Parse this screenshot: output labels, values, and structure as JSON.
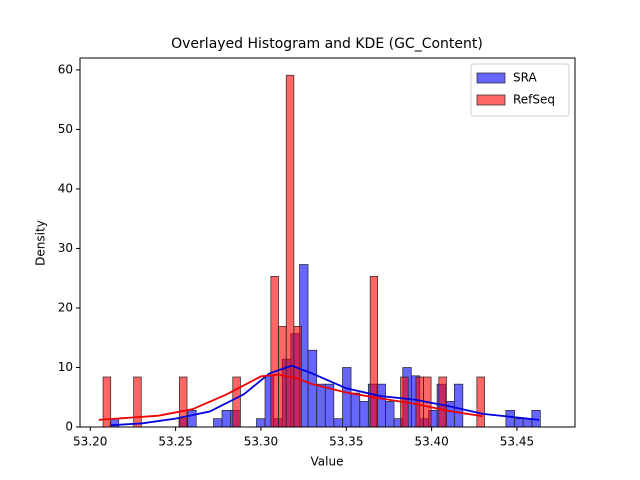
{
  "chart_data": {
    "type": "histogram",
    "title": "Overlayed Histogram and KDE (GC_Content)",
    "xlabel": "Value",
    "ylabel": "Density",
    "xlim": [
      53.194,
      53.484
    ],
    "ylim": [
      0,
      62
    ],
    "xticks": [
      {
        "value": 53.2,
        "label": "53.20"
      },
      53.25,
      {
        "value": 53.3,
        "label": "53.30"
      },
      53.35,
      {
        "value": 53.4,
        "label": "53.40"
      },
      53.45
    ],
    "yticks": [
      0,
      10,
      20,
      30,
      40,
      50,
      60
    ],
    "legend": "upper right",
    "series": [
      {
        "name": "SRA",
        "color": "#0000ff",
        "line_color": "#0000dd",
        "bins": [
          53.2117,
          53.2167,
          53.2218,
          53.2268,
          53.2319,
          53.2369,
          53.2419,
          53.247,
          53.252,
          53.2571,
          53.2621,
          53.2671,
          53.2722,
          53.2772,
          53.2823,
          53.2873,
          53.2923,
          53.2974,
          53.3024,
          53.3075,
          53.3125,
          53.3175,
          53.3226,
          53.3276,
          53.3327,
          53.3377,
          53.3427,
          53.3478,
          53.3528,
          53.3579,
          53.3629,
          53.3679,
          53.373,
          53.378,
          53.3831,
          53.3881,
          53.3931,
          53.3982,
          53.4032,
          53.4083,
          53.4133,
          53.4183,
          53.4234,
          53.4284,
          53.4335,
          53.4385,
          53.4435,
          53.4486,
          53.4536,
          53.4587,
          53.4637
        ],
        "values": [
          1.4,
          0,
          0,
          0,
          0,
          0,
          0,
          0,
          1.4,
          2.8,
          0,
          0,
          1.4,
          2.8,
          2.8,
          0,
          0,
          1.4,
          8.6,
          1.4,
          11.4,
          15.7,
          27.3,
          12.9,
          7.2,
          7.2,
          1.4,
          10,
          5.7,
          4.3,
          7.2,
          7.2,
          4.3,
          1.4,
          10,
          8.6,
          1.4,
          2.8,
          7.2,
          4.3,
          7.2,
          0,
          0,
          0,
          0,
          0,
          2.8,
          1.4,
          1.4,
          2.8
        ],
        "kde_x": [
          53.212,
          53.23,
          53.25,
          53.27,
          53.29,
          53.305,
          53.318,
          53.33,
          53.35,
          53.37,
          53.39,
          53.41,
          53.43,
          53.45,
          53.463
        ],
        "kde_y": [
          0.3,
          0.6,
          1.4,
          2.6,
          5.5,
          9.0,
          10.3,
          9.0,
          6.5,
          5.2,
          4.6,
          3.5,
          2.2,
          1.6,
          1.2
        ]
      },
      {
        "name": "RefSeq",
        "color": "#ff0000",
        "line_color": "#ee0000",
        "bins": [
          53.2075,
          53.212,
          53.2164,
          53.2209,
          53.2254,
          53.2299,
          53.2343,
          53.2388,
          53.2433,
          53.2477,
          53.2522,
          53.2567,
          53.2611,
          53.2656,
          53.2701,
          53.2746,
          53.279,
          53.2835,
          53.288,
          53.2924,
          53.2969,
          53.3014,
          53.3058,
          53.3103,
          53.3148,
          53.3193,
          53.3237,
          53.3282,
          53.3327,
          53.3371,
          53.3416,
          53.3461,
          53.3505,
          53.355,
          53.3595,
          53.364,
          53.3684,
          53.3729,
          53.3774,
          53.3818,
          53.3863,
          53.3908,
          53.3952,
          53.3997,
          53.4042,
          53.4087,
          53.4131,
          53.4176,
          53.4221,
          53.4265,
          53.431
        ],
        "values": [
          8.4,
          0,
          0,
          0,
          8.4,
          0,
          0,
          0,
          0,
          0,
          8.4,
          0,
          0,
          0,
          0,
          0,
          0,
          8.4,
          0,
          0,
          0,
          0,
          25.3,
          16.9,
          59.1,
          16.9,
          0,
          0,
          0,
          0,
          0,
          0,
          0,
          0,
          0,
          25.3,
          0,
          0,
          0,
          8.4,
          0,
          8.4,
          8.4,
          0,
          8.4,
          0,
          0,
          0,
          0,
          8.4
        ],
        "kde_x": [
          53.205,
          53.22,
          53.24,
          53.26,
          53.28,
          53.3,
          53.31,
          53.32,
          53.33,
          53.35,
          53.37,
          53.39,
          53.41,
          53.43
        ],
        "kde_y": [
          1.2,
          1.5,
          1.9,
          3.0,
          5.5,
          8.5,
          8.8,
          8.3,
          7.2,
          5.8,
          4.8,
          3.9,
          2.7,
          1.8
        ]
      }
    ]
  }
}
